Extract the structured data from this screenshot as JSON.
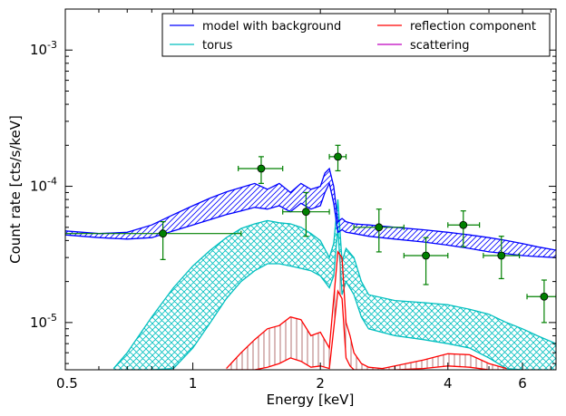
{
  "chart_data": {
    "type": "line",
    "xlabel": "Energy [keV]",
    "ylabel": "Count rate [cts/s/keV]",
    "xscale": "log",
    "yscale": "log",
    "xlim": [
      0.5,
      7.2
    ],
    "ylim": [
      4.5e-06,
      0.002
    ],
    "x_ticks": [
      {
        "value": 0.5,
        "label": "0.5"
      },
      {
        "value": 1,
        "label": "1"
      },
      {
        "value": 2,
        "label": "2"
      },
      {
        "value": 4,
        "label": "4"
      },
      {
        "value": 6,
        "label": "6"
      }
    ],
    "y_ticks": [
      {
        "value": 1e-05,
        "base": "10",
        "exp": "-5"
      },
      {
        "value": 0.0001,
        "base": "10",
        "exp": "-4"
      },
      {
        "value": 0.001,
        "base": "10",
        "exp": "-3"
      }
    ],
    "legend_position": "top-right",
    "legend": [
      {
        "name": "model with background",
        "color": "#0000ff"
      },
      {
        "name": "reflection component",
        "color": "#ff0000"
      },
      {
        "name": "torus",
        "color": "#00bfbf"
      },
      {
        "name": "scattering",
        "color": "#bf00bf"
      }
    ],
    "colors": {
      "model": "#0000ff",
      "torus": "#00bfbf",
      "reflection": "#ff0000",
      "reflection_hatch": "#a05050",
      "data": "#008000"
    },
    "series": [
      {
        "name": "model with background",
        "color": "#0000ff",
        "x": [
          0.5,
          0.6,
          0.7,
          0.8,
          0.9,
          1.0,
          1.1,
          1.2,
          1.3,
          1.4,
          1.5,
          1.6,
          1.7,
          1.8,
          1.9,
          2.0,
          2.05,
          2.1,
          2.15,
          2.2,
          2.25,
          2.3,
          2.4,
          2.5,
          2.6,
          3.0,
          3.5,
          4.0,
          4.5,
          5.0,
          5.5,
          6.0,
          6.5,
          7.2
        ],
        "upper": [
          4.7e-05,
          4.5e-05,
          4.6e-05,
          5.2e-05,
          6.2e-05,
          7.2e-05,
          8.2e-05,
          9.1e-05,
          9.8e-05,
          0.000105,
          9.5e-05,
          0.000105,
          9e-05,
          0.000105,
          9.5e-05,
          0.0001,
          0.000125,
          0.000135,
          0.0001,
          5.5e-05,
          5.8e-05,
          5.5e-05,
          5.3e-05,
          5.25e-05,
          5.2e-05,
          5e-05,
          4.8e-05,
          4.6e-05,
          4.4e-05,
          4.2e-05,
          4e-05,
          3.8e-05,
          3.6e-05,
          3.4e-05
        ],
        "lower": [
          4.4e-05,
          4.2e-05,
          4.1e-05,
          4.2e-05,
          4.7e-05,
          5.2e-05,
          5.7e-05,
          6.2e-05,
          6.6e-05,
          7e-05,
          6.8e-05,
          7.2e-05,
          6.5e-05,
          7.5e-05,
          6.8e-05,
          7.2e-05,
          9e-05,
          0.000105,
          7.5e-05,
          4.6e-05,
          4.8e-05,
          4.6e-05,
          4.5e-05,
          4.4e-05,
          4.3e-05,
          4.1e-05,
          3.9e-05,
          3.7e-05,
          3.5e-05,
          3.3e-05,
          3.2e-05,
          3.1e-05,
          3.05e-05,
          3e-05
        ]
      },
      {
        "name": "torus",
        "color": "#00bfbf",
        "x": [
          0.65,
          0.7,
          0.8,
          0.9,
          1.0,
          1.1,
          1.2,
          1.3,
          1.4,
          1.5,
          1.6,
          1.7,
          1.8,
          1.9,
          2.0,
          2.1,
          2.15,
          2.2,
          2.25,
          2.3,
          2.4,
          2.5,
          2.6,
          3.0,
          3.5,
          4.0,
          4.5,
          5.0,
          5.5,
          6.0,
          6.5,
          7.2
        ],
        "upper": [
          4.6e-06,
          6e-06,
          1.1e-05,
          1.8e-05,
          2.6e-05,
          3.4e-05,
          4.2e-05,
          4.9e-05,
          5.3e-05,
          5.6e-05,
          5.4e-05,
          5.3e-05,
          5e-05,
          4.5e-05,
          4e-05,
          3e-05,
          3.8e-05,
          8e-05,
          2.8e-05,
          3.5e-05,
          3e-05,
          2e-05,
          1.6e-05,
          1.45e-05,
          1.4e-05,
          1.35e-05,
          1.25e-05,
          1.15e-05,
          1e-05,
          9e-06,
          8e-06,
          7e-06
        ],
        "lower": [
          null,
          null,
          null,
          4.6e-06,
          6.5e-06,
          1e-05,
          1.5e-05,
          2e-05,
          2.4e-05,
          2.7e-05,
          2.7e-05,
          2.6e-05,
          2.5e-05,
          2.4e-05,
          2.2e-05,
          1.8e-05,
          2.2e-05,
          5e-05,
          1.6e-05,
          2e-05,
          1.6e-05,
          1.1e-05,
          9e-06,
          8e-06,
          7.5e-06,
          7e-06,
          6.5e-06,
          5.5e-06,
          4.6e-06,
          null,
          null,
          null
        ]
      },
      {
        "name": "reflection component",
        "color": "#ff0000",
        "x": [
          1.2,
          1.3,
          1.4,
          1.5,
          1.6,
          1.7,
          1.8,
          1.9,
          2.0,
          2.1,
          2.2,
          2.25,
          2.3,
          2.35,
          2.4,
          2.5,
          2.6,
          2.8,
          3.0,
          3.5,
          4.0,
          4.5,
          5.0,
          5.5
        ],
        "upper": [
          4.6e-06,
          6e-06,
          7.5e-06,
          9e-06,
          9.5e-06,
          1.1e-05,
          1.05e-05,
          8e-06,
          8.5e-06,
          6.5e-06,
          3.3e-05,
          3e-05,
          1e-05,
          8e-06,
          6e-06,
          5e-06,
          4.7e-06,
          4.6e-06,
          4.8e-06,
          5.3e-06,
          5.9e-06,
          5.8e-06,
          5e-06,
          4.6e-06
        ],
        "lower": [
          null,
          null,
          null,
          4.7e-06,
          5e-06,
          5.5e-06,
          5.2e-06,
          4.7e-06,
          4.8e-06,
          4.6e-06,
          1.7e-05,
          1.5e-05,
          5.5e-06,
          4.8e-06,
          null,
          null,
          null,
          null,
          null,
          4.6e-06,
          4.8e-06,
          4.7e-06,
          null,
          null
        ]
      },
      {
        "name": "scattering",
        "color": "#bf00bf",
        "x": [],
        "values": []
      },
      {
        "name": "data",
        "color": "#008000",
        "points": [
          {
            "x": 0.85,
            "y": 4.5e-05,
            "xerr": [
              0.35,
              0.45
            ],
            "yerr": [
              2.9e-05,
              5.5e-05
            ]
          },
          {
            "x": 1.45,
            "y": 0.000135,
            "xerr": [
              0.17,
              0.18
            ],
            "yerr": [
              0.000105,
              0.000165
            ]
          },
          {
            "x": 1.85,
            "y": 6.5e-05,
            "xerr": [
              0.22,
              0.25
            ],
            "yerr": [
              4.3e-05,
              9e-05
            ]
          },
          {
            "x": 2.2,
            "y": 0.000165,
            "xerr": [
              0.1,
              0.1
            ],
            "yerr": [
              0.00013,
              0.0002
            ]
          },
          {
            "x": 2.75,
            "y": 5e-05,
            "xerr": [
              0.35,
              0.4
            ],
            "yerr": [
              3.3e-05,
              6.8e-05
            ]
          },
          {
            "x": 3.55,
            "y": 3.1e-05,
            "xerr": [
              0.4,
              0.45
            ],
            "yerr": [
              1.9e-05,
              4.2e-05
            ]
          },
          {
            "x": 4.35,
            "y": 5.2e-05,
            "xerr": [
              0.35,
              0.4
            ],
            "yerr": [
              3.6e-05,
              6.6e-05
            ]
          },
          {
            "x": 5.35,
            "y": 3.1e-05,
            "xerr": [
              0.5,
              0.55
            ],
            "yerr": [
              2.1e-05,
              4.3e-05
            ]
          },
          {
            "x": 6.75,
            "y": 1.55e-05,
            "xerr": [
              0.6,
              0.45
            ],
            "yerr": [
              1e-05,
              2.05e-05
            ]
          }
        ]
      }
    ]
  }
}
